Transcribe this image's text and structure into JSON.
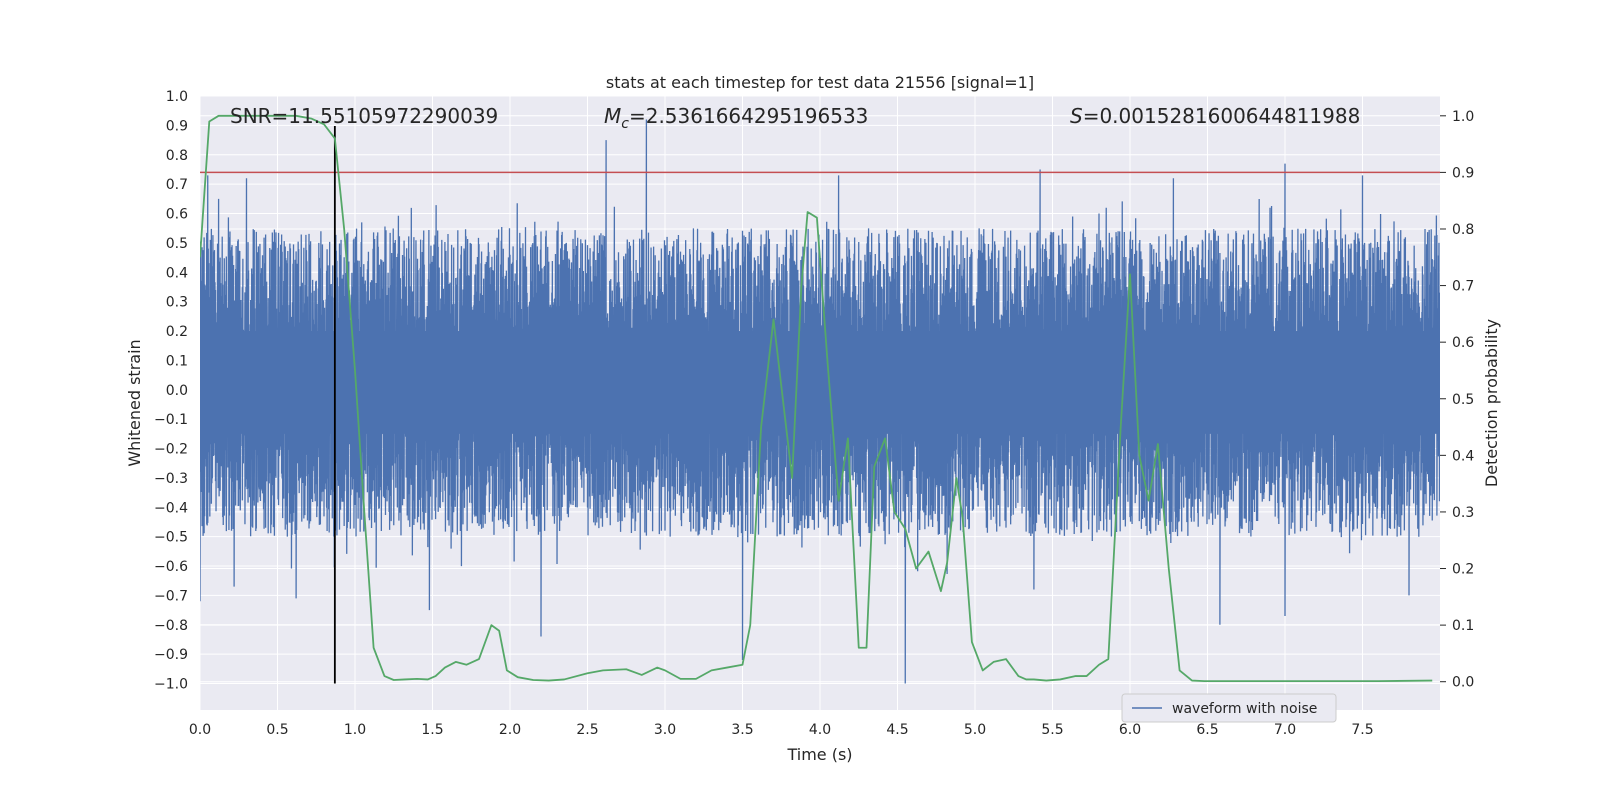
{
  "chart_data": {
    "type": "line",
    "title": "stats at each timestep for test data 21556 [signal=1]",
    "xlabel": "Time (s)",
    "ylabel": "Whitened strain",
    "y2label": "Detection probability",
    "xlim": [
      0.0,
      8.0
    ],
    "ylim": [
      -1.09,
      1.0
    ],
    "y2lim": [
      -0.05,
      1.035
    ],
    "x_ticks": [
      0.0,
      0.5,
      1.0,
      1.5,
      2.0,
      2.5,
      3.0,
      3.5,
      4.0,
      4.5,
      5.0,
      5.5,
      6.0,
      6.5,
      7.0,
      7.5
    ],
    "x_tick_labels": [
      "0.0",
      "0.5",
      "1.0",
      "1.5",
      "2.0",
      "2.5",
      "3.0",
      "3.5",
      "4.0",
      "4.5",
      "5.0",
      "5.5",
      "6.0",
      "6.5",
      "7.0",
      "7.5"
    ],
    "y_ticks": [
      1.0,
      0.9,
      0.8,
      0.7,
      0.6,
      0.5,
      0.4,
      0.3,
      0.2,
      0.1,
      0.0,
      -0.1,
      -0.2,
      -0.3,
      -0.4,
      -0.5,
      -0.6,
      -0.7,
      -0.8,
      -0.9,
      -1.0
    ],
    "y_tick_labels": [
      "1.0",
      "0.9",
      "0.8",
      "0.7",
      "0.6",
      "0.5",
      "0.4",
      "0.3",
      "0.2",
      "0.1",
      "0.0",
      "−0.1",
      "−0.2",
      "−0.3",
      "−0.4",
      "−0.5",
      "−0.6",
      "−0.7",
      "−0.8",
      "−0.9",
      "−1.0"
    ],
    "y2_ticks": [
      1.0,
      0.9,
      0.8,
      0.7,
      0.6,
      0.5,
      0.4,
      0.3,
      0.2,
      0.1,
      0.0
    ],
    "y2_tick_labels": [
      "1.0",
      "0.9",
      "0.8",
      "0.7",
      "0.6",
      "0.5",
      "0.4",
      "0.3",
      "0.2",
      "0.1",
      "0.0"
    ],
    "annotations": {
      "snr": "SNR=11.55105972290039",
      "mc_symbol": "M",
      "mc_sub": "c",
      "mc_value": "=2.5361664295196533",
      "s_symbol": "S",
      "s_value": "=0.0015281600644811988"
    },
    "legend": {
      "label": "waveform with noise",
      "position": "lower right"
    },
    "threshold_line": {
      "y2": 0.9,
      "color": "#c44e52"
    },
    "marker_line": {
      "x": 0.87,
      "color": "#000000"
    },
    "series": [
      {
        "name": "waveform with noise",
        "axis": "left",
        "color": "#4c72b0",
        "envelope_high": 0.55,
        "envelope_low": -0.5,
        "peaks": [
          {
            "t": 0.05,
            "v": 0.73
          },
          {
            "t": 0.12,
            "v": 0.65
          },
          {
            "t": 0.3,
            "v": 0.72
          },
          {
            "t": 2.62,
            "v": 0.85
          },
          {
            "t": 2.88,
            "v": 0.92
          },
          {
            "t": 4.12,
            "v": 0.73
          },
          {
            "t": 5.42,
            "v": 0.75
          },
          {
            "t": 6.28,
            "v": 0.72
          },
          {
            "t": 7.0,
            "v": 0.77
          },
          {
            "t": 7.5,
            "v": 0.73
          }
        ],
        "troughs": [
          {
            "t": 0.0,
            "v": -0.72
          },
          {
            "t": 0.22,
            "v": -0.67
          },
          {
            "t": 0.62,
            "v": -0.71
          },
          {
            "t": 1.48,
            "v": -0.75
          },
          {
            "t": 2.2,
            "v": -0.84
          },
          {
            "t": 3.5,
            "v": -0.92
          },
          {
            "t": 4.55,
            "v": -1.0
          },
          {
            "t": 5.38,
            "v": -0.68
          },
          {
            "t": 6.58,
            "v": -0.8
          },
          {
            "t": 7.0,
            "v": -0.77
          },
          {
            "t": 7.8,
            "v": -0.7
          }
        ]
      },
      {
        "name": "detection probability",
        "axis": "right",
        "color": "#55a868",
        "x": [
          0.0,
          0.06,
          0.12,
          0.2,
          0.3,
          0.5,
          0.62,
          0.72,
          0.8,
          0.87,
          0.93,
          1.0,
          1.06,
          1.12,
          1.19,
          1.25,
          1.32,
          1.4,
          1.47,
          1.52,
          1.58,
          1.65,
          1.72,
          1.8,
          1.88,
          1.93,
          1.98,
          2.05,
          2.15,
          2.25,
          2.35,
          2.5,
          2.6,
          2.75,
          2.85,
          2.95,
          3.0,
          3.1,
          3.2,
          3.3,
          3.4,
          3.5,
          3.55,
          3.62,
          3.7,
          3.76,
          3.82,
          3.88,
          3.92,
          3.98,
          4.05,
          4.12,
          4.18,
          4.25,
          4.3,
          4.35,
          4.42,
          4.48,
          4.55,
          4.62,
          4.7,
          4.78,
          4.82,
          4.88,
          4.92,
          4.98,
          5.05,
          5.12,
          5.2,
          5.28,
          5.33,
          5.38,
          5.46,
          5.55,
          5.65,
          5.72,
          5.8,
          5.86,
          5.94,
          6.0,
          6.06,
          6.12,
          6.18,
          6.25,
          6.32,
          6.4,
          6.48,
          6.6,
          6.8,
          7.2,
          7.6,
          7.95
        ],
        "y": [
          0.75,
          0.99,
          1.0,
          1.0,
          1.0,
          1.0,
          1.0,
          0.995,
          0.985,
          0.96,
          0.8,
          0.55,
          0.3,
          0.06,
          0.01,
          0.003,
          0.004,
          0.005,
          0.004,
          0.01,
          0.025,
          0.035,
          0.03,
          0.04,
          0.1,
          0.09,
          0.02,
          0.008,
          0.003,
          0.002,
          0.004,
          0.015,
          0.02,
          0.022,
          0.012,
          0.025,
          0.02,
          0.005,
          0.005,
          0.02,
          0.025,
          0.03,
          0.1,
          0.45,
          0.64,
          0.5,
          0.36,
          0.7,
          0.83,
          0.82,
          0.56,
          0.32,
          0.43,
          0.06,
          0.06,
          0.38,
          0.43,
          0.3,
          0.27,
          0.2,
          0.23,
          0.16,
          0.21,
          0.36,
          0.29,
          0.07,
          0.02,
          0.035,
          0.04,
          0.01,
          0.004,
          0.004,
          0.002,
          0.004,
          0.01,
          0.01,
          0.03,
          0.04,
          0.45,
          0.72,
          0.4,
          0.32,
          0.42,
          0.2,
          0.02,
          0.002,
          0.001,
          0.001,
          0.001,
          0.001,
          0.001,
          0.002
        ]
      }
    ]
  }
}
